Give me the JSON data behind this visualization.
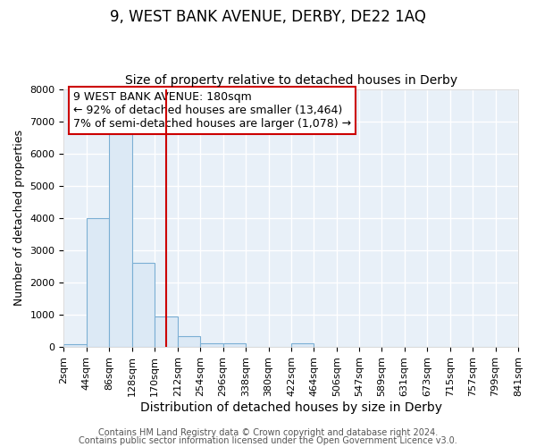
{
  "title": "9, WEST BANK AVENUE, DERBY, DE22 1AQ",
  "subtitle": "Size of property relative to detached houses in Derby",
  "xlabel": "Distribution of detached houses by size in Derby",
  "ylabel": "Number of detached properties",
  "bar_edges": [
    2,
    44,
    86,
    128,
    170,
    212,
    254,
    296,
    338,
    380,
    422,
    464,
    506,
    547,
    589,
    631,
    673,
    715,
    757,
    799,
    841
  ],
  "bar_heights": [
    75,
    4000,
    6600,
    2600,
    950,
    330,
    125,
    100,
    0,
    0,
    100,
    0,
    0,
    0,
    0,
    0,
    0,
    0,
    0,
    0
  ],
  "bar_color": "#dce9f5",
  "bar_edgecolor": "#7bafd4",
  "tick_labels": [
    "2sqm",
    "44sqm",
    "86sqm",
    "128sqm",
    "170sqm",
    "212sqm",
    "254sqm",
    "296sqm",
    "338sqm",
    "380sqm",
    "422sqm",
    "464sqm",
    "506sqm",
    "547sqm",
    "589sqm",
    "631sqm",
    "673sqm",
    "715sqm",
    "757sqm",
    "799sqm",
    "841sqm"
  ],
  "property_line_x": 191,
  "property_line_color": "#cc0000",
  "ylim": [
    0,
    8000
  ],
  "yticks": [
    0,
    1000,
    2000,
    3000,
    4000,
    5000,
    6000,
    7000,
    8000
  ],
  "annotation_text": "9 WEST BANK AVENUE: 180sqm\n← 92% of detached houses are smaller (13,464)\n7% of semi-detached houses are larger (1,078) →",
  "annotation_box_color": "#ffffff",
  "annotation_box_edgecolor": "#cc0000",
  "footer_line1": "Contains HM Land Registry data © Crown copyright and database right 2024.",
  "footer_line2": "Contains public sector information licensed under the Open Government Licence v3.0.",
  "background_color": "#e8f0f8",
  "grid_color": "#ffffff",
  "fig_background": "#ffffff",
  "title_fontsize": 12,
  "subtitle_fontsize": 10,
  "ylabel_fontsize": 9,
  "xlabel_fontsize": 10,
  "tick_fontsize": 8,
  "annotation_fontsize": 9,
  "footer_fontsize": 7
}
